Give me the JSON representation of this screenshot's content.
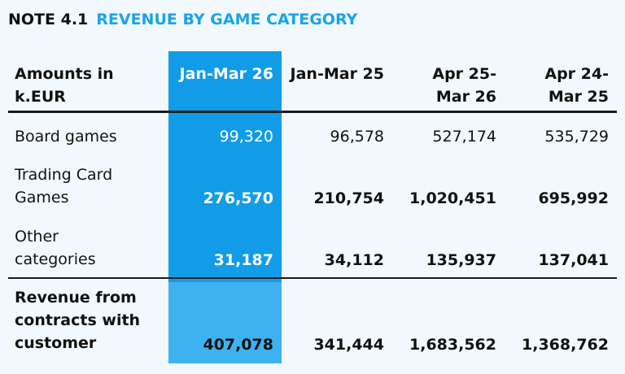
{
  "note": {
    "number": "NOTE 4.1",
    "title": "REVENUE BY GAME CATEGORY"
  },
  "table": {
    "header_label": "Amounts in k.EUR",
    "columns": [
      "Jan-Mar 26",
      "Jan-Mar 25",
      "Apr 25-Mar 26",
      "Apr 24-Mar 25"
    ],
    "rows": [
      {
        "label": "Board games",
        "values": [
          "99,320",
          "96,578",
          "527,174",
          "535,729"
        ]
      },
      {
        "label": "Trading Card Games",
        "values": [
          "276,570",
          "210,754",
          "1,020,451",
          "695,992"
        ]
      },
      {
        "label": "Other categories",
        "values": [
          "31,187",
          "34,112",
          "135,937",
          "137,041"
        ]
      }
    ],
    "total": {
      "label": "Revenue from contracts with customer",
      "values": [
        "407,078",
        "341,444",
        "1,683,562",
        "1,368,762"
      ]
    }
  },
  "colors": {
    "accent": "#1aa3ec",
    "highlight_column": "#129ce8",
    "highlight_total": "#3eb2f0",
    "background": "#f2f9fe"
  }
}
